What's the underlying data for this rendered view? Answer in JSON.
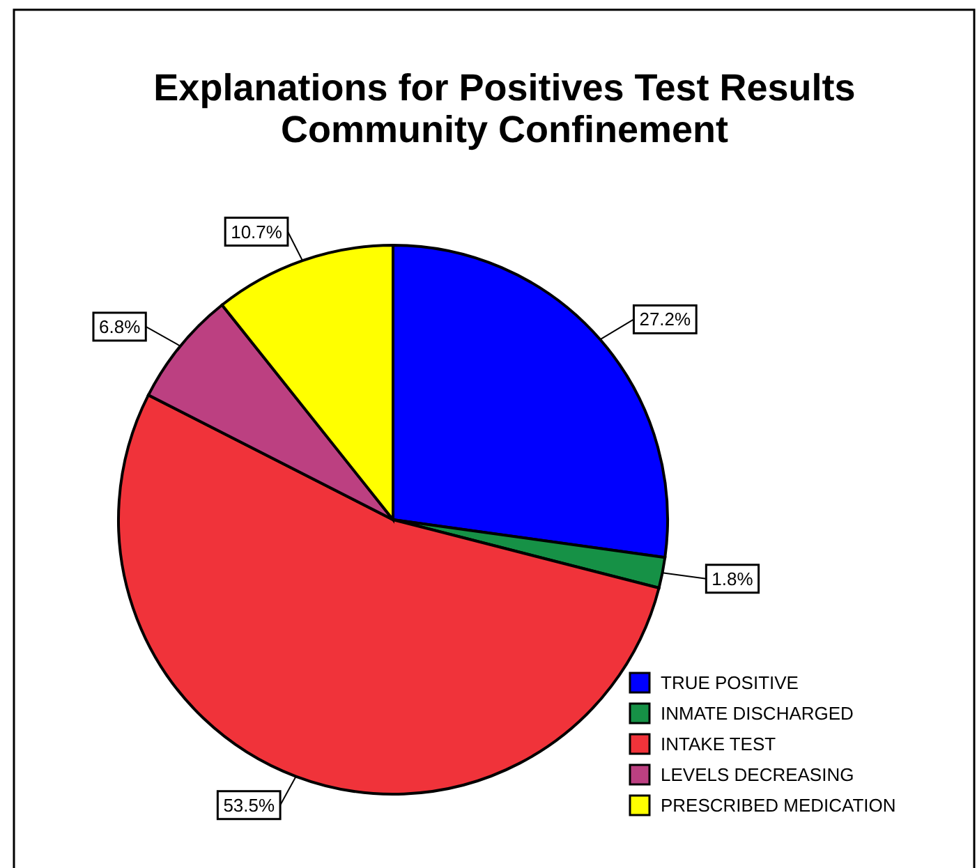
{
  "chart_data": {
    "type": "pie",
    "title": "Explanations for Positives Test Results\nCommunity Confinement",
    "categories": [
      "TRUE POSITIVE",
      "INMATE DISCHARGED",
      "INTAKE TEST",
      "LEVELS DECREASING",
      "PRESCRIBED MEDICATION"
    ],
    "values": [
      27.2,
      1.8,
      53.5,
      6.8,
      10.7
    ],
    "colors": [
      "#0000ff",
      "#169146",
      "#f0333a",
      "#bc4081",
      "#ffff00"
    ],
    "value_labels": [
      "27.2%",
      "1.8%",
      "53.5%",
      "6.8%",
      "10.7%"
    ],
    "legend": "bottom right"
  }
}
